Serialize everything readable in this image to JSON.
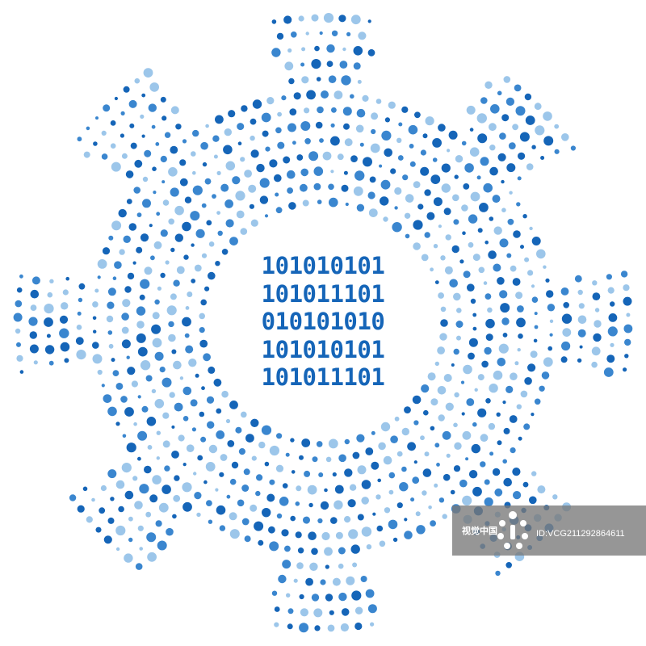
{
  "binary": {
    "lines": [
      "101010101",
      "101011101",
      "010101010",
      "101010101",
      "101011101"
    ]
  },
  "colors": {
    "dark_blue": "#1565b8",
    "mid_blue": "#3a86cf",
    "light_blue": "#9cc6ea",
    "background": "#ffffff"
  },
  "gear": {
    "teeth": 8,
    "rings": 14
  },
  "watermark": {
    "brand": "视觉中国",
    "id": "ID:VCG211292864611"
  }
}
